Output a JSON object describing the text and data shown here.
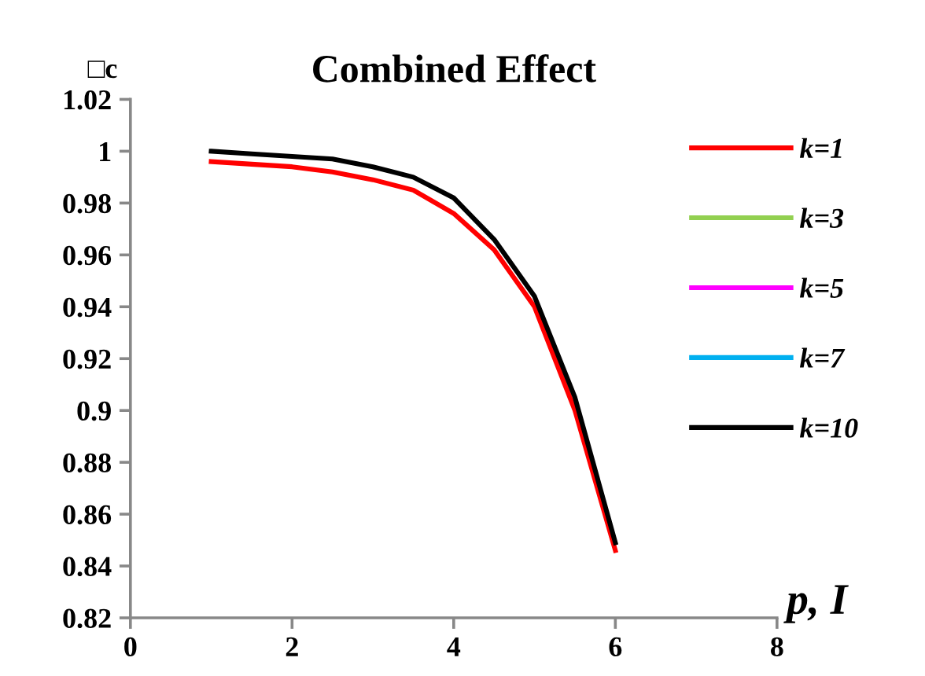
{
  "chart_data": {
    "type": "line",
    "title": "Combined Effect",
    "xlabel": "p, I",
    "ylabel": "□c",
    "x": [
      1,
      1.5,
      2,
      2.5,
      3,
      3.5,
      4,
      4.5,
      5,
      5.5,
      6
    ],
    "series": [
      {
        "name": "k=1",
        "color": "#ff0000",
        "values": [
          0.996,
          0.995,
          0.994,
          0.992,
          0.989,
          0.985,
          0.976,
          0.962,
          0.94,
          0.9,
          0.846
        ]
      },
      {
        "name": "k=3",
        "color": "#92d050",
        "values": [
          null,
          null,
          null,
          null,
          null,
          null,
          null,
          null,
          null,
          null,
          null
        ]
      },
      {
        "name": "k=5",
        "color": "#ff00ff",
        "values": [
          null,
          null,
          null,
          null,
          null,
          null,
          null,
          null,
          null,
          null,
          null
        ]
      },
      {
        "name": "k=7",
        "color": "#00b0f0",
        "values": [
          null,
          null,
          null,
          null,
          null,
          null,
          null,
          null,
          null,
          null,
          null
        ]
      },
      {
        "name": "k=10",
        "color": "#000000",
        "values": [
          1.0,
          0.999,
          0.998,
          0.997,
          0.994,
          0.99,
          0.982,
          0.966,
          0.944,
          0.905,
          0.849
        ]
      }
    ],
    "xlim": [
      0,
      8
    ],
    "xticks": [
      0,
      2,
      4,
      6,
      8
    ],
    "ylim": [
      0.82,
      1.02
    ],
    "yticks": [
      0.82,
      0.84,
      0.86,
      0.88,
      0.9,
      0.92,
      0.94,
      0.96,
      0.98,
      1,
      1.02
    ],
    "grid": false,
    "legend": "right",
    "marker": "none",
    "line_style": "solid"
  }
}
